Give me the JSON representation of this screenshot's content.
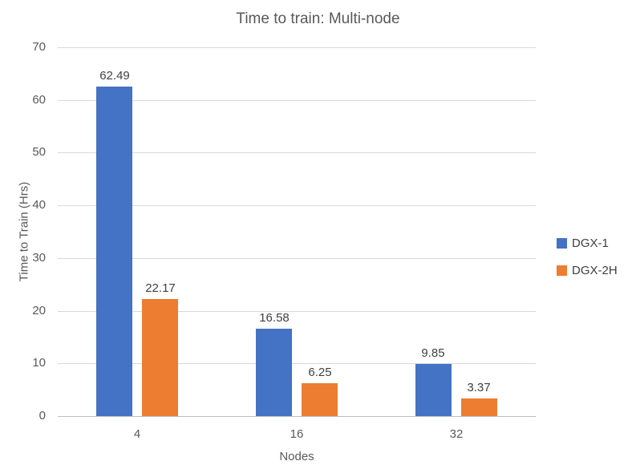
{
  "chart_data": {
    "type": "bar",
    "title": "Time to train: Multi-node",
    "xlabel": "Nodes",
    "ylabel": "Time to Train (Hrs)",
    "categories": [
      "4",
      "16",
      "32"
    ],
    "series": [
      {
        "name": "DGX-1",
        "color": "#4472C4",
        "values": [
          62.49,
          16.58,
          9.85
        ],
        "value_labels": [
          "62.49",
          "16.58",
          "9.85"
        ]
      },
      {
        "name": "DGX-2H",
        "color": "#ED7D31",
        "values": [
          22.17,
          6.25,
          3.37
        ],
        "value_labels": [
          "22.17",
          "6.25",
          "3.37"
        ]
      }
    ],
    "ylim": [
      0,
      70
    ],
    "yticks": [
      0,
      10,
      20,
      30,
      40,
      50,
      60,
      70
    ],
    "grid": true,
    "legend_position": "right"
  }
}
